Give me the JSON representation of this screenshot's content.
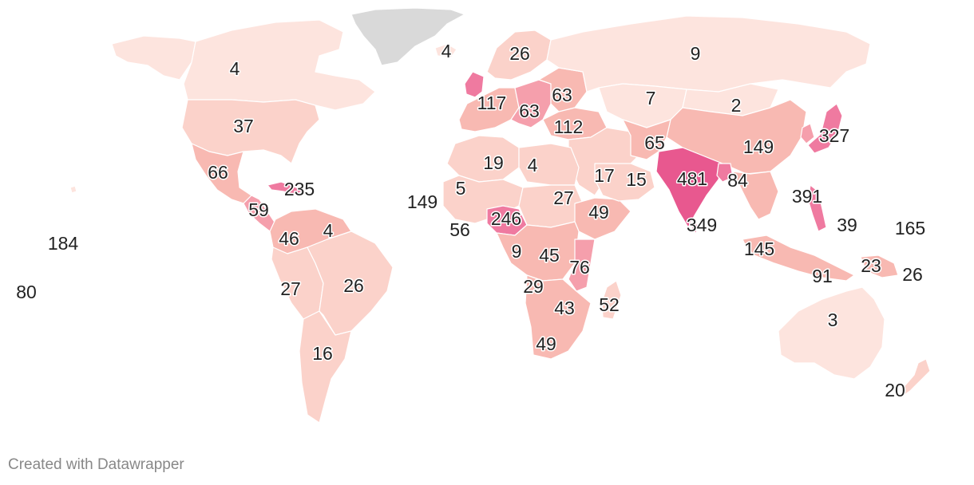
{
  "colors": {
    "no_data": "#d9d9d9",
    "level_1": "#fde4de",
    "level_2": "#fbd2ca",
    "level_3": "#f8b9b2",
    "level_4": "#f59fac",
    "level_5": "#ef7aa0",
    "level_6": "#e8588f"
  },
  "values": [
    {
      "id": "canada",
      "value": "4"
    },
    {
      "id": "usa",
      "value": "37"
    },
    {
      "id": "mexico",
      "value": "66"
    },
    {
      "id": "caribbean",
      "value": "235"
    },
    {
      "id": "central-america",
      "value": "59"
    },
    {
      "id": "colombia",
      "value": "46"
    },
    {
      "id": "guyana",
      "value": "4"
    },
    {
      "id": "peru",
      "value": "27"
    },
    {
      "id": "brazil",
      "value": "26"
    },
    {
      "id": "argentina",
      "value": "16"
    },
    {
      "id": "hawaii",
      "value": "184"
    },
    {
      "id": "pacific-west",
      "value": "80"
    },
    {
      "id": "iceland",
      "value": "4"
    },
    {
      "id": "scandinavia",
      "value": "26"
    },
    {
      "id": "western-europe",
      "value": "117"
    },
    {
      "id": "central-europe",
      "value": "63"
    },
    {
      "id": "eastern-europe",
      "value": "63"
    },
    {
      "id": "turkey",
      "value": "112"
    },
    {
      "id": "russia",
      "value": "9"
    },
    {
      "id": "kazakhstan",
      "value": "7"
    },
    {
      "id": "mongolia",
      "value": "2"
    },
    {
      "id": "japan",
      "value": "327"
    },
    {
      "id": "china",
      "value": "149"
    },
    {
      "id": "afghanistan",
      "value": "65"
    },
    {
      "id": "india",
      "value": "481"
    },
    {
      "id": "bangladesh",
      "value": "84"
    },
    {
      "id": "sri-lanka",
      "value": "349"
    },
    {
      "id": "philippines",
      "value": "391"
    },
    {
      "id": "micronesia",
      "value": "39"
    },
    {
      "id": "marshall",
      "value": "165"
    },
    {
      "id": "indonesia-west",
      "value": "145"
    },
    {
      "id": "timor",
      "value": "91"
    },
    {
      "id": "png",
      "value": "23"
    },
    {
      "id": "solomon",
      "value": "26"
    },
    {
      "id": "australia",
      "value": "3"
    },
    {
      "id": "new-zealand",
      "value": "20"
    },
    {
      "id": "morocco",
      "value": "19"
    },
    {
      "id": "libya",
      "value": "4"
    },
    {
      "id": "saudi",
      "value": "17"
    },
    {
      "id": "oman",
      "value": "15"
    },
    {
      "id": "cabo-verde",
      "value": "149"
    },
    {
      "id": "mali",
      "value": "5"
    },
    {
      "id": "sudan",
      "value": "27"
    },
    {
      "id": "ethiopia",
      "value": "49"
    },
    {
      "id": "nigeria",
      "value": "246"
    },
    {
      "id": "ghana",
      "value": "56"
    },
    {
      "id": "gabon",
      "value": "9"
    },
    {
      "id": "drc",
      "value": "45"
    },
    {
      "id": "malawi",
      "value": "76"
    },
    {
      "id": "angola",
      "value": "29"
    },
    {
      "id": "mozambique",
      "value": "43"
    },
    {
      "id": "madagascar",
      "value": "52"
    },
    {
      "id": "south-africa",
      "value": "49"
    }
  ],
  "footer": {
    "credit": "Created with Datawrapper"
  }
}
